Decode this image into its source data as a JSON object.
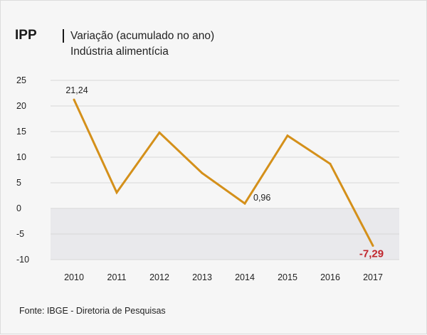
{
  "header": {
    "brand": "IPP",
    "subtitle_line1": "Variação (acumulado no ano)",
    "subtitle_line2": "Indústria alimentícia"
  },
  "source": "Fonte: IBGE - Diretoria de Pesquisas",
  "colors": {
    "line": "#d4901a",
    "negative_label": "#c0262d",
    "negative_band": "#e9e9ec",
    "gridline": "#d8d8d8"
  },
  "chart_data": {
    "type": "line",
    "title": "Variação (acumulado no ano) — Indústria alimentícia",
    "xlabel": "",
    "ylabel": "",
    "categories": [
      "2010",
      "2011",
      "2012",
      "2013",
      "2014",
      "2015",
      "2016",
      "2017"
    ],
    "series": [
      {
        "name": "IPP",
        "values": [
          21.24,
          3.1,
          14.8,
          6.9,
          0.96,
          14.2,
          8.7,
          -7.29
        ]
      }
    ],
    "ylim": [
      -10,
      25
    ],
    "yticks": [
      25,
      20,
      15,
      10,
      5,
      0,
      -5,
      -10
    ],
    "ytick_labels": [
      "25",
      "20",
      "15",
      "10",
      "5",
      "0",
      "-5",
      "-10"
    ],
    "data_labels": [
      {
        "index": 0,
        "text": "21,24"
      },
      {
        "index": 4,
        "text": "0,96"
      },
      {
        "index": 7,
        "text": "-7,29",
        "emphasis": "negative"
      }
    ]
  }
}
